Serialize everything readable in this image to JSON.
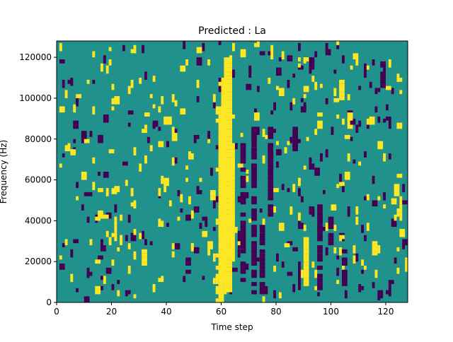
{
  "chart_data": {
    "type": "heatmap",
    "title": "Predicted : La",
    "xlabel": "Time step",
    "ylabel": "Frequency (Hz)",
    "xlim": [
      0,
      128
    ],
    "ylim": [
      0,
      128000
    ],
    "xticks": [
      0,
      20,
      40,
      60,
      80,
      100,
      120
    ],
    "yticks": [
      0,
      20000,
      40000,
      60000,
      80000,
      100000,
      120000
    ],
    "rows": 128,
    "cols": 128,
    "colormap": {
      "background": "#21918c",
      "low": "#440154",
      "high": "#fde725"
    },
    "stripes_high": [
      {
        "x": [
          59,
          61
        ],
        "y": [
          0,
          96000
        ]
      },
      {
        "x": [
          60,
          62
        ],
        "y": [
          10000,
          110000
        ]
      },
      {
        "x": [
          61,
          64
        ],
        "y": [
          5000,
          120000
        ]
      },
      {
        "x": [
          63,
          65
        ],
        "y": [
          20000,
          70000
        ]
      },
      {
        "x": [
          64,
          65
        ],
        "y": [
          65000,
          78000
        ]
      },
      {
        "x": [
          90,
          92
        ],
        "y": [
          8000,
          32000
        ]
      },
      {
        "x": [
          31,
          33
        ],
        "y": [
          18000,
          26000
        ]
      },
      {
        "x": [
          21,
          22
        ],
        "y": [
          30000,
          42000
        ]
      },
      {
        "x": [
          56,
          58
        ],
        "y": [
          50000,
          55000
        ]
      },
      {
        "x": [
          115,
          117
        ],
        "y": [
          23000,
          30000
        ]
      },
      {
        "x": [
          127,
          128
        ],
        "y": [
          15000,
          22000
        ]
      },
      {
        "x": [
          125,
          126
        ],
        "y": [
          40000,
          52000
        ]
      },
      {
        "x": [
          103,
          105
        ],
        "y": [
          99000,
          109000
        ]
      }
    ],
    "stripes_low": [
      {
        "x": [
          67,
          69
        ],
        "y": [
          10000,
          80000
        ]
      },
      {
        "x": [
          71,
          73
        ],
        "y": [
          4000,
          86000
        ]
      },
      {
        "x": [
          74,
          76
        ],
        "y": [
          4000,
          40000
        ]
      },
      {
        "x": [
          77,
          79
        ],
        "y": [
          40000,
          86000
        ]
      },
      {
        "x": [
          66,
          67
        ],
        "y": [
          20000,
          35000
        ]
      },
      {
        "x": [
          88,
          89
        ],
        "y": [
          8000,
          20000
        ]
      },
      {
        "x": [
          95,
          97
        ],
        "y": [
          6000,
          50000
        ]
      },
      {
        "x": [
          104,
          106
        ],
        "y": [
          6000,
          26000
        ]
      },
      {
        "x": [
          99,
          101
        ],
        "y": [
          28000,
          42000
        ]
      },
      {
        "x": [
          47,
          49
        ],
        "y": [
          14000,
          26000
        ]
      },
      {
        "x": [
          126,
          128
        ],
        "y": [
          46000,
          52000
        ]
      },
      {
        "x": [
          86,
          88
        ],
        "y": [
          74000,
          86000
        ]
      },
      {
        "x": [
          118,
          120
        ],
        "y": [
          105000,
          118000
        ]
      }
    ],
    "seed": 7,
    "cells_high": 260,
    "cells_low": 250
  }
}
